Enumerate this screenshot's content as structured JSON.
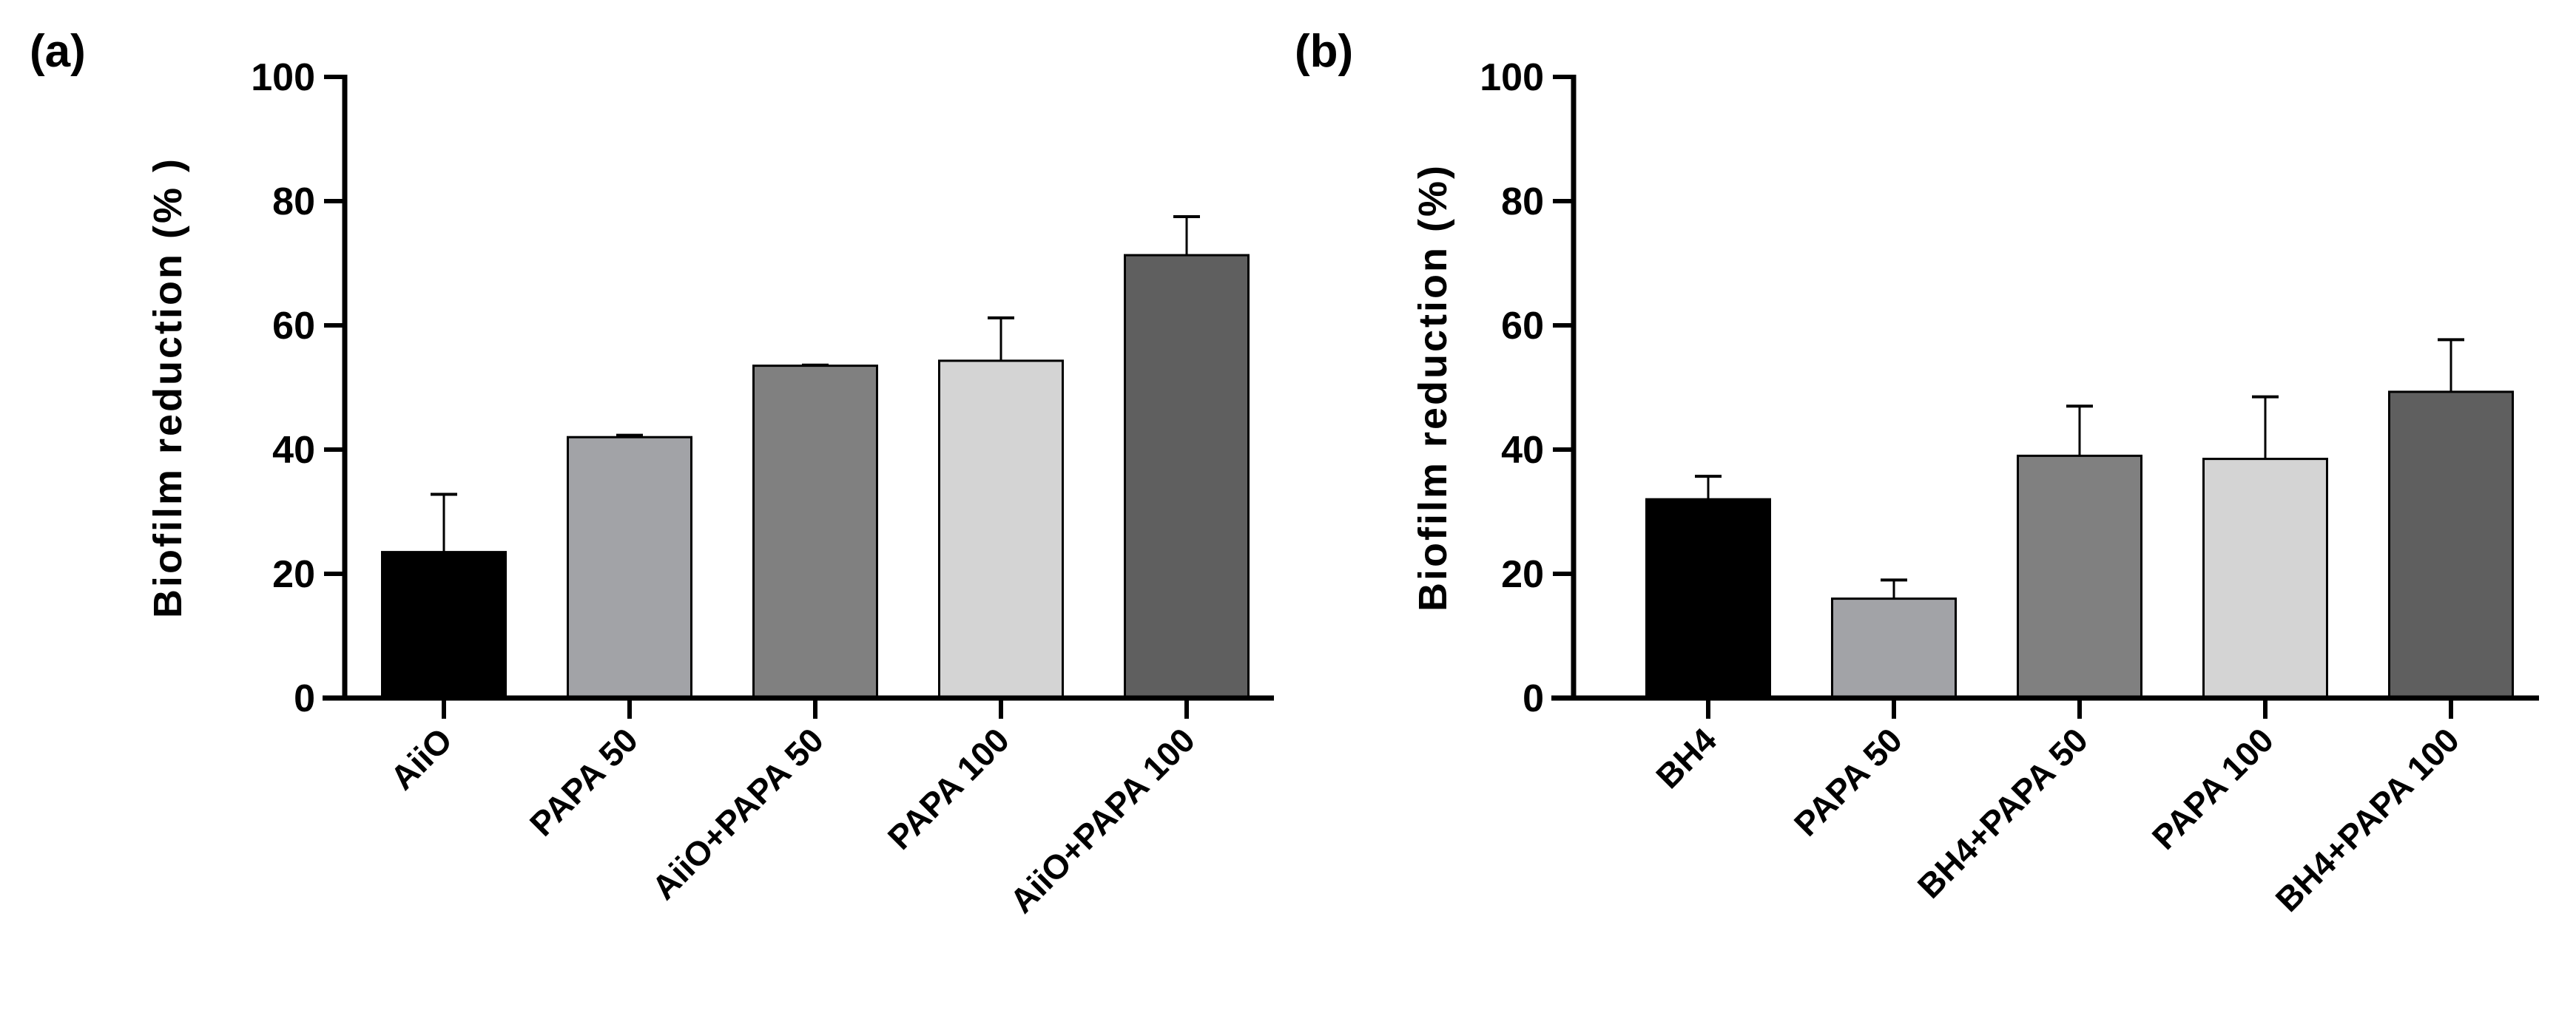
{
  "chart_data": [
    {
      "type": "bar",
      "panel_label": "(a)",
      "ylabel": "Biofilm reduction (% )",
      "xlabel": "",
      "ylim": [
        0,
        100
      ],
      "yticks": [
        0,
        20,
        40,
        60,
        80,
        100
      ],
      "categories": [
        "AiiO",
        "PAPA 50",
        "AiiO+PAPA 50",
        "PAPA 100",
        "AiiO+PAPA 100"
      ],
      "values": [
        23.5,
        42.0,
        53.5,
        54.3,
        71.3
      ],
      "error_upper": [
        32.8,
        42.3,
        53.6,
        61.2,
        77.5
      ],
      "colors": [
        "#000000",
        "#a2a3a7",
        "#808080",
        "#d4d4d4",
        "#5f5f5f"
      ],
      "grid": false
    },
    {
      "type": "bar",
      "panel_label": "(b)",
      "ylabel": "Biofilm reduction (%)",
      "xlabel": "",
      "ylim": [
        0,
        100
      ],
      "yticks": [
        0,
        20,
        40,
        60,
        80,
        100
      ],
      "categories": [
        "BH4",
        "PAPA 50",
        "BH4+PAPA 50",
        "PAPA 100",
        "BH4+PAPA 100"
      ],
      "values": [
        32.0,
        16.0,
        39.0,
        38.5,
        49.3
      ],
      "error_upper": [
        35.7,
        19.0,
        47.0,
        48.5,
        57.7
      ],
      "colors": [
        "#000000",
        "#a2a3a7",
        "#808080",
        "#d4d4d4",
        "#5f5f5f"
      ],
      "grid": false
    }
  ]
}
